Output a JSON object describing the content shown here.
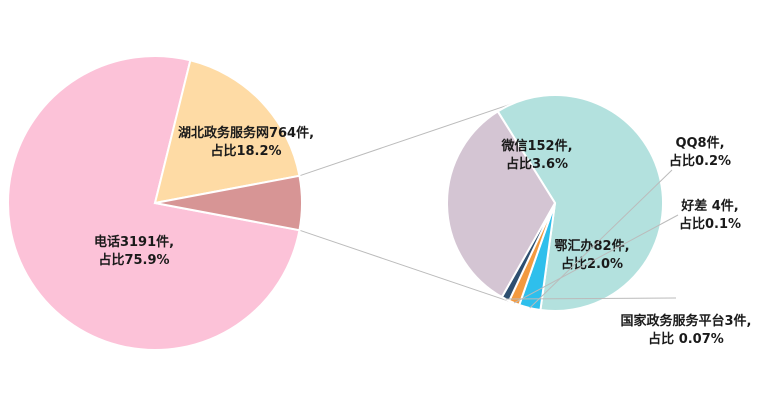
{
  "chart_data": {
    "type": "pie",
    "subtype": "pie-of-pie",
    "main": {
      "slices": [
        {
          "label_line1": "电话3191件,",
          "label_line2": "占比75.9%",
          "value": 3191,
          "percent": 75.9,
          "color": "#FCC2D8"
        },
        {
          "label_line1": "湖北政务服务网764件,",
          "label_line2": "占比18.2%",
          "value": 764,
          "percent": 18.2,
          "color": "#FEDBA5"
        },
        {
          "label_line1": "",
          "label_line2": "",
          "value": 249,
          "percent": 5.9,
          "color": "#D79595",
          "is_group": true
        }
      ]
    },
    "secondary": {
      "slices": [
        {
          "label_line1": "微信152件,",
          "label_line2": "占比3.6%",
          "value": 152,
          "percent": 3.6,
          "color": "#B3E1DE"
        },
        {
          "label_line1": "QQ8件,",
          "label_line2": "占比0.2%",
          "value": 8,
          "percent": 0.2,
          "color": "#2EBFEC"
        },
        {
          "label_line1": "好差 4件,",
          "label_line2": "占比0.1%",
          "value": 4,
          "percent": 0.1,
          "color": "#F39A40"
        },
        {
          "label_line1": "国家政务服务平台3件,",
          "label_line2": "占比 0.07%",
          "value": 3,
          "percent": 0.07,
          "color": "#2E4F70"
        },
        {
          "label_line1": "鄂汇办82件,",
          "label_line2": "占比2.0%",
          "value": 82,
          "percent": 2.0,
          "color": "#D4C5D3"
        }
      ]
    },
    "connector_color": "#BBBBBB",
    "title": "",
    "legend": "none"
  }
}
